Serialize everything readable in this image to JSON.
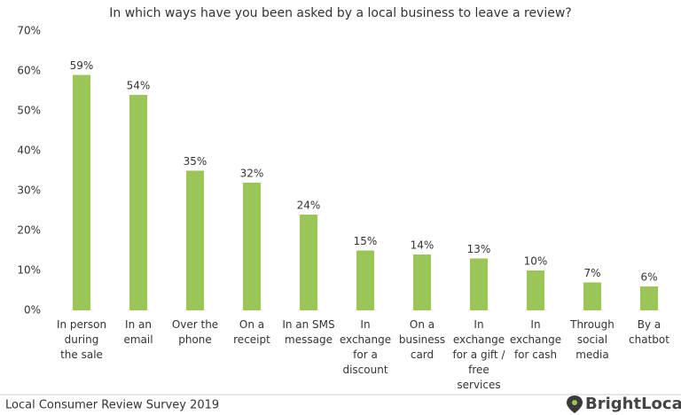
{
  "chart_data": {
    "type": "bar",
    "title": "In which ways have you been asked by a local business to leave a review?",
    "categories": [
      "In person during the sale",
      "In an email",
      "Over the phone",
      "On a receipt",
      "In an SMS message",
      "In exchange for a discount",
      "On a business card",
      "In exchange for a gift / free services",
      "In exchange for cash",
      "Through social media",
      "By a chatbot"
    ],
    "values": [
      59,
      54,
      35,
      32,
      24,
      15,
      14,
      13,
      10,
      7,
      6
    ],
    "value_labels": [
      "59%",
      "54%",
      "35%",
      "32%",
      "24%",
      "15%",
      "14%",
      "13%",
      "10%",
      "7%",
      "6%"
    ],
    "color": "#9bc557",
    "ylim": [
      0,
      70
    ],
    "yticks": [
      {
        "value": 0,
        "label": "0%"
      },
      {
        "value": 10,
        "label": "10%"
      },
      {
        "value": 20,
        "label": "20%"
      },
      {
        "value": 30,
        "label": "30%"
      },
      {
        "value": 40,
        "label": "40%"
      },
      {
        "value": 50,
        "label": "50%"
      },
      {
        "value": 60,
        "label": "60%"
      },
      {
        "value": 70,
        "label": "70%"
      }
    ],
    "grid": false
  },
  "footer": {
    "source": "Local Consumer Review Survey 2019",
    "brand": "BrightLocal"
  }
}
